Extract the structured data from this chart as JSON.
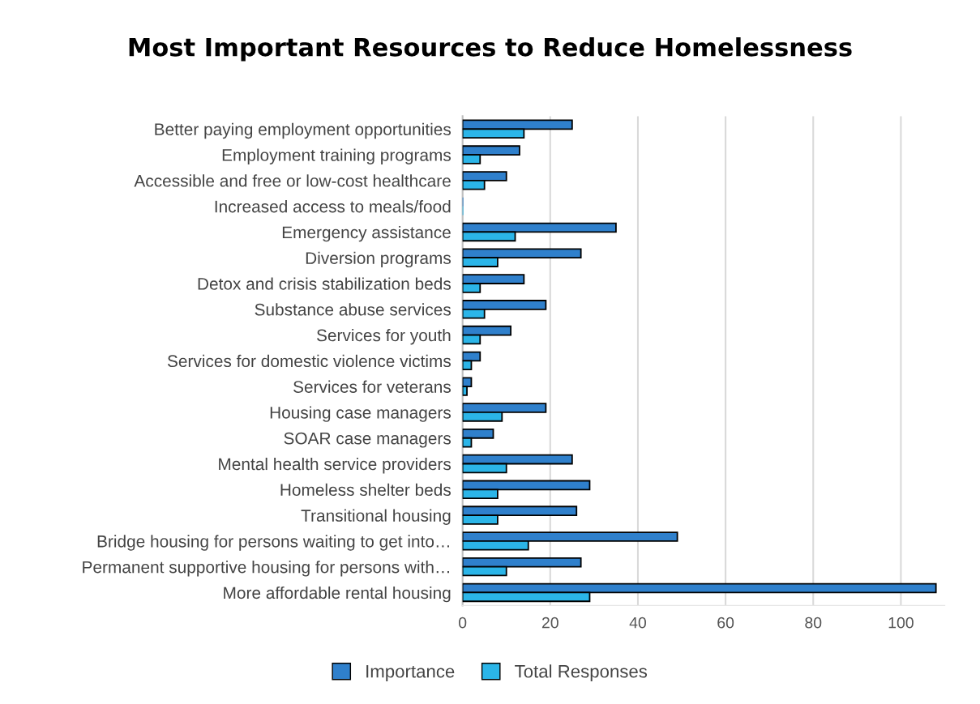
{
  "chart_data": {
    "type": "bar",
    "orientation": "horizontal",
    "title": "Most Important Resources to Reduce Homelessness",
    "categories": [
      "Better paying employment opportunities",
      "Employment training programs",
      "Accessible and free or low-cost healthcare",
      "Increased access to meals/food",
      "Emergency assistance",
      "Diversion programs",
      "Detox and crisis stabilization beds",
      "Substance abuse services",
      "Services for youth",
      "Services for domestic violence victims",
      "Services for veterans",
      "Housing case managers",
      "SOAR case managers",
      "Mental health service providers",
      "Homeless shelter beds",
      "Transitional housing",
      "Bridge housing for persons waiting to get into…",
      "Permanent supportive housing for persons with…",
      "More affordable rental housing"
    ],
    "series": [
      {
        "name": "Importance",
        "color": "#2f80cc",
        "values": [
          25,
          13,
          10,
          0,
          35,
          27,
          14,
          19,
          11,
          4,
          2,
          19,
          7,
          25,
          29,
          26,
          49,
          27,
          108
        ]
      },
      {
        "name": "Total Responses",
        "color": "#2bb5e8",
        "values": [
          14,
          4,
          5,
          0,
          12,
          8,
          4,
          5,
          4,
          2,
          1,
          9,
          2,
          10,
          8,
          8,
          15,
          10,
          29
        ]
      }
    ],
    "xlim": [
      0,
      110
    ],
    "xticks": [
      0,
      20,
      40,
      60,
      80,
      100
    ],
    "grid": "x",
    "legend": "bottom"
  }
}
